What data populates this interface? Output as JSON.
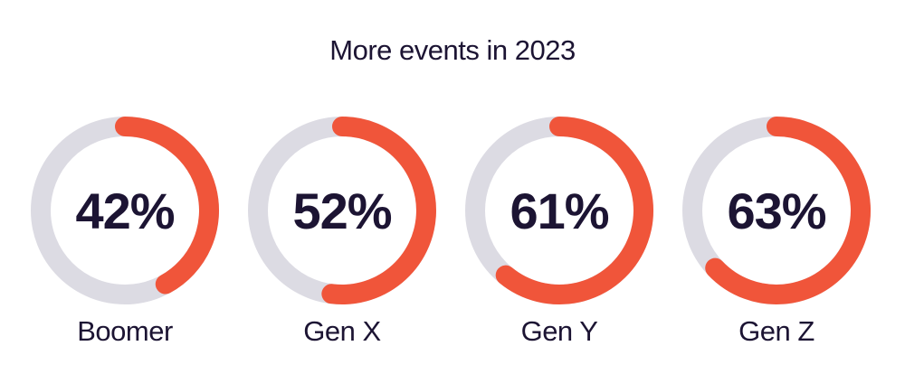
{
  "chart_data": {
    "type": "pie",
    "title": "More events in 2023",
    "categories": [
      "Boomer",
      "Gen X",
      "Gen Y",
      "Gen Z"
    ],
    "values": [
      42,
      52,
      61,
      63
    ],
    "value_labels": [
      "42%",
      "52%",
      "61%",
      "63%"
    ],
    "colors": {
      "filled": "#f0553a",
      "track": "#dcdbe3",
      "text": "#1c1433"
    }
  }
}
